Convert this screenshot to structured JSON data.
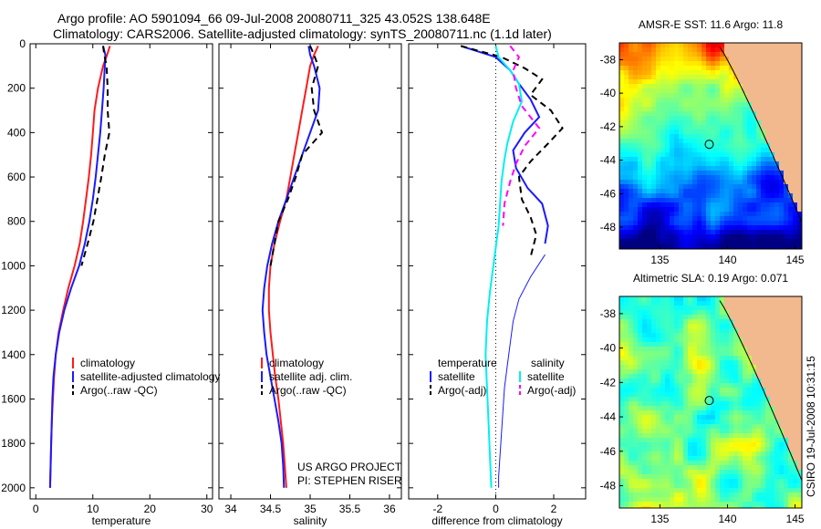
{
  "header": {
    "title_line1": "Argo profile: AO 5901094_66 09-Jul-2008 20080711_325 43.052S 138.648E",
    "title_line2": "Climatology: CARS2006. Satellite-adjusted climatology: synTS_20080711.nc (1.1d later)"
  },
  "footer": {
    "project": "US ARGO PROJECT",
    "pi": "PI: STEPHEN RISER",
    "stamp": "CSIRO 19-Jul-2008 10:31:15"
  },
  "colors": {
    "climatology": "#ff1a1a",
    "satellite": "#1a1aff",
    "argo": "#000000",
    "sat_salinity": "#00f0f0",
    "argo_salinity": "#ff00ff",
    "land": "#f2b98e"
  },
  "chart_data": [
    {
      "type": "line",
      "xlabel": "temperature",
      "ylabel": "",
      "xlim": [
        -1,
        31
      ],
      "ylim": [
        0,
        2050
      ],
      "y_reversed": true,
      "xticks": [
        0,
        10,
        20,
        30
      ],
      "yticks": [
        0,
        200,
        400,
        600,
        800,
        1000,
        1200,
        1400,
        1600,
        1800,
        2000
      ],
      "legend": [
        "climatology",
        "satellite-adjusted climatology",
        "Argo(..raw -QC)"
      ],
      "legend_position": "lower-right",
      "series": [
        {
          "name": "climatology",
          "color": "red",
          "width": 2,
          "dash": "",
          "points": [
            [
              13.0,
              10
            ],
            [
              12.5,
              50
            ],
            [
              11.8,
              100
            ],
            [
              10.9,
              200
            ],
            [
              10.3,
              300
            ],
            [
              10.0,
              400
            ],
            [
              9.7,
              500
            ],
            [
              9.3,
              600
            ],
            [
              8.8,
              700
            ],
            [
              8.3,
              800
            ],
            [
              7.7,
              900
            ],
            [
              6.8,
              1000
            ],
            [
              5.7,
              1100
            ],
            [
              4.8,
              1200
            ],
            [
              4.0,
              1300
            ],
            [
              3.5,
              1400
            ],
            [
              3.2,
              1500
            ],
            [
              3.0,
              1600
            ],
            [
              2.8,
              1700
            ],
            [
              2.7,
              1800
            ],
            [
              2.6,
              1900
            ],
            [
              2.5,
              2000
            ]
          ]
        },
        {
          "name": "satellite-adjusted climatology",
          "color": "blue",
          "width": 2,
          "dash": "",
          "points": [
            [
              11.8,
              10
            ],
            [
              12.2,
              50
            ],
            [
              12.1,
              100
            ],
            [
              11.9,
              200
            ],
            [
              11.6,
              300
            ],
            [
              11.3,
              400
            ],
            [
              10.9,
              500
            ],
            [
              10.5,
              600
            ],
            [
              10.0,
              700
            ],
            [
              9.4,
              800
            ],
            [
              8.6,
              900
            ],
            [
              7.6,
              1000
            ],
            [
              6.2,
              1100
            ],
            [
              5.0,
              1200
            ],
            [
              4.1,
              1300
            ],
            [
              3.5,
              1400
            ],
            [
              3.1,
              1500
            ],
            [
              2.9,
              1600
            ],
            [
              2.8,
              1700
            ],
            [
              2.7,
              1800
            ],
            [
              2.6,
              1900
            ],
            [
              2.5,
              2000
            ]
          ]
        },
        {
          "name": "Argo(..raw -QC)",
          "color": "black",
          "width": 2,
          "dash": "7,5",
          "points": [
            [
              11.8,
              10
            ],
            [
              12.0,
              50
            ],
            [
              12.4,
              100
            ],
            [
              12.6,
              200
            ],
            [
              12.6,
              300
            ],
            [
              12.9,
              400
            ],
            [
              12.1,
              500
            ],
            [
              11.5,
              600
            ],
            [
              10.8,
              700
            ],
            [
              10.1,
              800
            ],
            [
              9.1,
              900
            ],
            [
              8.0,
              1000
            ]
          ]
        }
      ]
    },
    {
      "type": "line",
      "xlabel": "salinity",
      "ylabel": "",
      "xlim": [
        33.85,
        36.15
      ],
      "ylim": [
        0,
        2050
      ],
      "y_reversed": true,
      "xticks": [
        34,
        34.5,
        35,
        35.5,
        36
      ],
      "yticks": [
        0,
        200,
        400,
        600,
        800,
        1000,
        1200,
        1400,
        1600,
        1800,
        2000
      ],
      "legend": [
        "climatology",
        "satellite adj. clim.",
        "Argo(..raw -QC)"
      ],
      "legend_position": "lower-right",
      "series": [
        {
          "name": "climatology",
          "color": "red",
          "width": 2,
          "dash": "",
          "points": [
            [
              35.1,
              10
            ],
            [
              35.05,
              50
            ],
            [
              35.0,
              100
            ],
            [
              34.95,
              200
            ],
            [
              34.9,
              300
            ],
            [
              34.85,
              400
            ],
            [
              34.8,
              500
            ],
            [
              34.75,
              600
            ],
            [
              34.7,
              700
            ],
            [
              34.62,
              800
            ],
            [
              34.55,
              900
            ],
            [
              34.5,
              1000
            ],
            [
              34.48,
              1100
            ],
            [
              34.48,
              1200
            ],
            [
              34.5,
              1300
            ],
            [
              34.53,
              1400
            ],
            [
              34.56,
              1500
            ],
            [
              34.6,
              1600
            ],
            [
              34.63,
              1700
            ],
            [
              34.66,
              1800
            ],
            [
              34.68,
              1900
            ],
            [
              34.7,
              2000
            ]
          ]
        },
        {
          "name": "satellite adj. clim.",
          "color": "blue",
          "width": 2,
          "dash": "",
          "points": [
            [
              34.98,
              10
            ],
            [
              35.0,
              50
            ],
            [
              35.05,
              100
            ],
            [
              35.12,
              200
            ],
            [
              35.1,
              300
            ],
            [
              35.0,
              400
            ],
            [
              34.9,
              500
            ],
            [
              34.8,
              600
            ],
            [
              34.7,
              700
            ],
            [
              34.6,
              800
            ],
            [
              34.52,
              900
            ],
            [
              34.46,
              1000
            ],
            [
              34.42,
              1100
            ],
            [
              34.4,
              1200
            ],
            [
              34.42,
              1300
            ],
            [
              34.45,
              1400
            ],
            [
              34.5,
              1500
            ],
            [
              34.55,
              1600
            ],
            [
              34.6,
              1700
            ],
            [
              34.64,
              1800
            ],
            [
              34.66,
              1900
            ],
            [
              34.67,
              2000
            ]
          ]
        },
        {
          "name": "Argo(..raw -QC)",
          "color": "black",
          "width": 2,
          "dash": "7,5",
          "points": [
            [
              35.0,
              10
            ],
            [
              35.05,
              50
            ],
            [
              35.1,
              100
            ],
            [
              35.02,
              200
            ],
            [
              35.05,
              300
            ],
            [
              35.15,
              400
            ],
            [
              34.9,
              500
            ],
            [
              34.82,
              600
            ],
            [
              34.72,
              700
            ],
            [
              34.6,
              800
            ],
            [
              34.55,
              900
            ],
            [
              34.5,
              1000
            ]
          ]
        }
      ]
    },
    {
      "type": "line",
      "xlabel": "difference from climatology",
      "ylabel": "",
      "xlim": [
        -3,
        3.1
      ],
      "ylim": [
        0,
        2050
      ],
      "y_reversed": true,
      "xticks": [
        -2,
        0,
        2
      ],
      "yticks": [
        0,
        200,
        400,
        600,
        800,
        1000,
        1200,
        1400,
        1600,
        1800,
        2000
      ],
      "legend_columns": [
        {
          "heading": "temperature",
          "entries": [
            "satellite",
            "Argo(-adj)"
          ]
        },
        {
          "heading": "salinity",
          "entries": [
            "satellite",
            "Argo(-adj)"
          ]
        }
      ],
      "legend_position": "lower",
      "series": [
        {
          "name": "temperature satellite",
          "color": "blue",
          "width": 2,
          "dash": "",
          "points": [
            [
              -1.2,
              10
            ],
            [
              0.0,
              60
            ],
            [
              0.5,
              120
            ],
            [
              0.8,
              180
            ],
            [
              1.2,
              250
            ],
            [
              1.5,
              330
            ],
            [
              1.0,
              400
            ],
            [
              0.6,
              480
            ],
            [
              0.7,
              560
            ],
            [
              1.1,
              650
            ],
            [
              1.6,
              720
            ],
            [
              1.8,
              820
            ],
            [
              1.7,
              900
            ]
          ]
        },
        {
          "name": "temperature satellite (smoothed)",
          "color": "blue",
          "width": 1,
          "dash": "",
          "points": [
            [
              1.7,
              950
            ],
            [
              1.2,
              1050
            ],
            [
              0.8,
              1150
            ],
            [
              0.6,
              1250
            ],
            [
              0.5,
              1350
            ],
            [
              0.4,
              1450
            ],
            [
              0.3,
              1550
            ],
            [
              0.25,
              1650
            ],
            [
              0.2,
              1750
            ],
            [
              0.15,
              1850
            ],
            [
              0.1,
              1950
            ],
            [
              0.1,
              2000
            ]
          ]
        },
        {
          "name": "temperature Argo(-adj)",
          "color": "black",
          "width": 2,
          "dash": "7,5",
          "points": [
            [
              -1.2,
              10
            ],
            [
              0.2,
              60
            ],
            [
              1.0,
              110
            ],
            [
              1.6,
              160
            ],
            [
              1.2,
              230
            ],
            [
              1.9,
              300
            ],
            [
              2.3,
              380
            ],
            [
              1.8,
              450
            ],
            [
              1.2,
              530
            ],
            [
              0.8,
              600
            ],
            [
              0.9,
              700
            ],
            [
              1.2,
              780
            ],
            [
              1.4,
              860
            ],
            [
              1.2,
              960
            ]
          ]
        },
        {
          "name": "salinity satellite",
          "color": "cyan",
          "width": 2,
          "dash": "",
          "points": [
            [
              0.0,
              10
            ],
            [
              0.1,
              60
            ],
            [
              0.5,
              120
            ],
            [
              0.8,
              180
            ],
            [
              0.9,
              260
            ],
            [
              0.6,
              350
            ],
            [
              0.4,
              450
            ],
            [
              0.3,
              520
            ],
            [
              0.2,
              620
            ],
            [
              0.15,
              720
            ],
            [
              0.1,
              820
            ],
            [
              0.0,
              920
            ],
            [
              -0.1,
              1020
            ],
            [
              -0.2,
              1120
            ],
            [
              -0.3,
              1250
            ],
            [
              -0.35,
              1400
            ],
            [
              -0.3,
              1550
            ],
            [
              -0.25,
              1700
            ],
            [
              -0.2,
              1850
            ],
            [
              -0.15,
              2000
            ]
          ]
        },
        {
          "name": "salinity Argo(-adj)",
          "color": "magenta",
          "width": 2,
          "dash": "7,5",
          "points": [
            [
              0.5,
              10
            ],
            [
              0.8,
              60
            ],
            [
              0.6,
              120
            ],
            [
              0.7,
              200
            ],
            [
              0.9,
              280
            ],
            [
              1.5,
              380
            ],
            [
              1.0,
              460
            ],
            [
              0.7,
              540
            ],
            [
              0.5,
              620
            ],
            [
              0.3,
              720
            ],
            [
              0.25,
              820
            ]
          ]
        }
      ]
    },
    {
      "type": "heatmap",
      "title": "AMSR-E SST: 11.6 Argo: 11.8",
      "xlim": [
        132,
        145.5
      ],
      "ylim": [
        -49.3,
        -37
      ],
      "xticks": [
        135,
        140,
        145
      ],
      "yticks": [
        -38,
        -40,
        -42,
        -44,
        -46,
        -48
      ],
      "marker": [
        138.648,
        -43.052
      ],
      "colormap": "jet"
    },
    {
      "type": "heatmap",
      "title": "Altimetric SLA: 0.19 Argo: 0.071",
      "xlim": [
        132,
        145.5
      ],
      "ylim": [
        -49.3,
        -37
      ],
      "xticks": [
        135,
        140,
        145
      ],
      "yticks": [
        -38,
        -40,
        -42,
        -44,
        -46,
        -48
      ],
      "marker": [
        138.648,
        -43.052
      ],
      "colormap": "jet"
    }
  ]
}
